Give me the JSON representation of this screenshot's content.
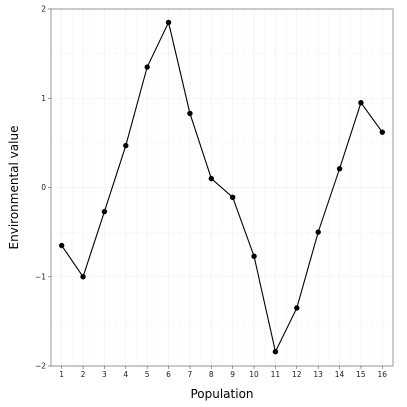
{
  "chart_data": {
    "type": "line",
    "xlabel": "Population",
    "ylabel": "Environmental value",
    "xlim": [
      0.5,
      16.5
    ],
    "ylim": [
      -2,
      2
    ],
    "x_ticks": [
      "1",
      "2",
      "3",
      "4",
      "5",
      "6",
      "7",
      "8",
      "9",
      "10",
      "11",
      "12",
      "13",
      "14",
      "15",
      "16"
    ],
    "y_ticks": [
      {
        "value": -2,
        "label": "−2"
      },
      {
        "value": -1,
        "label": "−1"
      },
      {
        "value": 0,
        "label": "0"
      },
      {
        "value": 1,
        "label": "1"
      },
      {
        "value": 2,
        "label": "2"
      }
    ],
    "grid": true,
    "legend": "none",
    "series": [
      {
        "x": [
          1,
          2,
          3,
          4,
          5,
          6,
          7,
          8,
          9,
          10,
          11,
          12,
          13,
          14,
          15,
          16
        ],
        "values": [
          -0.65,
          -1.0,
          -0.27,
          0.47,
          1.35,
          1.85,
          0.83,
          0.1,
          -0.11,
          -0.77,
          -1.84,
          -1.35,
          -0.5,
          0.21,
          0.95,
          0.62
        ]
      }
    ],
    "colors": {
      "line": "#000000",
      "point": "#000000",
      "grid": "#ececec",
      "border": "#7f7f7f"
    }
  }
}
